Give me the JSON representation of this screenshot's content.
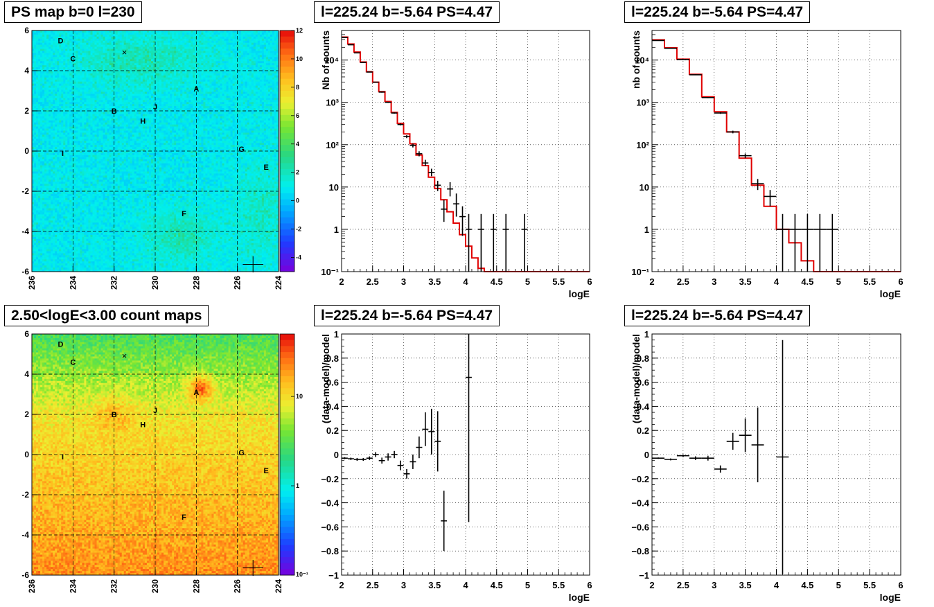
{
  "chart_data": [
    {
      "type": "heatmap",
      "title": "PS map b=0 l=230",
      "xlim": [
        236,
        224
      ],
      "ylim": [
        -6,
        6
      ],
      "x_ticks": [
        "236",
        "234",
        "232",
        "230",
        "228",
        "226",
        "224"
      ],
      "y_ticks": [
        "-6",
        "-4",
        "-2",
        "0",
        "2",
        "4",
        "6"
      ],
      "colorbar": {
        "scale": "linear",
        "range": [
          -5,
          12
        ],
        "ticks": [
          "12",
          "10",
          "8",
          "6",
          "4",
          "2",
          "0",
          "-2",
          "-4"
        ]
      },
      "grid": true,
      "sources": [
        {
          "label": "A",
          "l": 228.0,
          "b": 3.1
        },
        {
          "label": "B",
          "l": 232.0,
          "b": 2.0
        },
        {
          "label": "C",
          "l": 234.0,
          "b": 4.6
        },
        {
          "label": "D",
          "l": 234.6,
          "b": 5.5
        },
        {
          "label": "E",
          "l": 224.6,
          "b": -0.8
        },
        {
          "label": "F",
          "l": 228.6,
          "b": -3.1
        },
        {
          "label": "G",
          "l": 225.8,
          "b": 0.1
        },
        {
          "label": "H",
          "l": 230.6,
          "b": 1.5
        },
        {
          "label": "I",
          "l": 234.5,
          "b": -0.1
        },
        {
          "label": "J",
          "l": 230.0,
          "b": 2.2
        },
        {
          "label": "×",
          "l": 231.5,
          "b": 4.9
        }
      ],
      "position_marker": {
        "l": 225.24,
        "b": -5.64,
        "l_err": 0.5,
        "b_err": 0.4
      }
    },
    {
      "type": "line",
      "title": "l=225.24 b=-5.64 PS=4.47",
      "xlabel": "logE",
      "ylabel": "Nb of counts",
      "xlim": [
        2,
        6
      ],
      "ylim": [
        0.1,
        50000
      ],
      "yscale": "log",
      "x_ticks": [
        "2",
        "2.5",
        "3",
        "3.5",
        "4",
        "4.5",
        "5",
        "5.5",
        "6"
      ],
      "y_ticks": [
        {
          "v": 10000,
          "t": "10⁴"
        },
        {
          "v": 1000,
          "t": "10³"
        },
        {
          "v": 100,
          "t": "10²"
        },
        {
          "v": 10,
          "t": "10"
        },
        {
          "v": 1,
          "t": "1"
        },
        {
          "v": 0.1,
          "t": "10⁻¹"
        }
      ],
      "grid": true,
      "bin_edges": [
        2.0,
        2.1,
        2.2,
        2.3,
        2.4,
        2.5,
        2.6,
        2.7,
        2.8,
        2.9,
        3.0,
        3.1,
        3.2,
        3.3,
        3.4,
        3.5,
        3.6,
        3.7,
        3.8,
        3.9,
        4.0,
        4.1,
        4.2,
        4.3,
        4.4,
        4.5,
        4.6,
        4.7,
        4.8,
        4.9,
        5.0,
        5.1,
        5.2,
        5.3,
        5.4,
        5.5,
        5.6,
        5.7,
        5.8,
        5.9,
        6.0
      ],
      "series": [
        {
          "style": "step",
          "color": "#e00000",
          "values": [
            35000,
            24000,
            15500,
            9000,
            5300,
            3000,
            1800,
            1050,
            580,
            320,
            180,
            105,
            57,
            32,
            17,
            9.2,
            5,
            2.6,
            1.4,
            0.75,
            0.4,
            0.21,
            0.12,
            0.1,
            0.1,
            0.1,
            0.1,
            0.1,
            0.1,
            0.1,
            0.1,
            0.1,
            0.1,
            0.1,
            0.1,
            0.1,
            0.1,
            0.1,
            0.1,
            0.1
          ]
        },
        {
          "style": "points",
          "color": "#000000",
          "x": [
            2.05,
            2.15,
            2.25,
            2.35,
            2.45,
            2.55,
            2.65,
            2.75,
            2.85,
            2.95,
            3.05,
            3.15,
            3.25,
            3.35,
            3.45,
            3.55,
            3.65,
            3.75,
            3.85,
            3.95,
            4.05,
            4.25,
            4.45,
            4.65,
            4.95
          ],
          "y": [
            34000,
            23000,
            14800,
            8800,
            5200,
            3000,
            1750,
            1000,
            560,
            300,
            155,
            96,
            61,
            37,
            22,
            11,
            3,
            9,
            4,
            2,
            1,
            1,
            1,
            1,
            1
          ],
          "xerr": [
            0.05,
            0.05,
            0.05,
            0.05,
            0.05,
            0.05,
            0.05,
            0.05,
            0.05,
            0.05,
            0.05,
            0.05,
            0.05,
            0.05,
            0.05,
            0.05,
            0.05,
            0.05,
            0.05,
            0.05,
            0.05,
            0.05,
            0.05,
            0.05,
            0.05
          ],
          "ylow": [
            33800,
            22800,
            14600,
            8700,
            5100,
            2950,
            1700,
            970,
            540,
            285,
            143,
            86,
            53,
            31,
            18,
            8,
            1.5,
            6,
            2,
            0.7,
            0.1,
            0.1,
            0.1,
            0.1,
            0.1
          ],
          "yhigh": [
            34200,
            23200,
            15000,
            8900,
            5300,
            3050,
            1800,
            1030,
            580,
            317,
            168,
            106,
            70,
            44,
            27,
            14,
            5,
            13,
            7,
            3.5,
            2.3,
            2.3,
            2.3,
            2.3,
            2.3
          ]
        }
      ]
    },
    {
      "type": "line",
      "title": "l=225.24 b=-5.64 PS=4.47",
      "xlabel": "logE",
      "ylabel": "nb of counts",
      "xlim": [
        2,
        6
      ],
      "ylim": [
        0.1,
        50000
      ],
      "yscale": "log",
      "x_ticks": [
        "2",
        "2.5",
        "3",
        "3.5",
        "4",
        "4.5",
        "5",
        "5.5",
        "6"
      ],
      "y_ticks": [
        {
          "v": 10000,
          "t": "10⁴"
        },
        {
          "v": 1000,
          "t": "10³"
        },
        {
          "v": 100,
          "t": "10²"
        },
        {
          "v": 10,
          "t": "10"
        },
        {
          "v": 1,
          "t": "1"
        },
        {
          "v": 0.1,
          "t": "10⁻¹"
        }
      ],
      "grid": true,
      "bin_edges": [
        2.0,
        2.2,
        2.4,
        2.6,
        2.8,
        3.0,
        3.2,
        3.4,
        3.6,
        3.8,
        4.0,
        4.2,
        4.4,
        4.6,
        4.8,
        5.0,
        5.2,
        5.4,
        5.6,
        5.8,
        6.0
      ],
      "series": [
        {
          "style": "step",
          "color": "#e00000",
          "values": [
            30000,
            19500,
            10500,
            4600,
            1350,
            600,
            200,
            48,
            11,
            3.5,
            1,
            0.48,
            0.18,
            0.1,
            0.1,
            0.1,
            0.1,
            0.1,
            0.1,
            0.1
          ]
        },
        {
          "style": "points",
          "color": "#000000",
          "x": [
            2.1,
            2.3,
            2.5,
            2.7,
            2.9,
            3.1,
            3.3,
            3.5,
            3.7,
            3.9,
            4.1,
            4.3,
            4.5,
            4.7,
            4.9
          ],
          "y": [
            29000,
            19000,
            10300,
            4500,
            1300,
            560,
            200,
            55,
            12,
            6,
            1,
            1,
            1,
            1,
            1
          ],
          "xerr": [
            0.1,
            0.1,
            0.1,
            0.1,
            0.1,
            0.1,
            0.1,
            0.1,
            0.1,
            0.1,
            0.1,
            0.1,
            0.1,
            0.1,
            0.1
          ],
          "ylow": [
            28800,
            18800,
            10100,
            4400,
            1260,
            535,
            186,
            48,
            8.5,
            3.5,
            0.1,
            0.1,
            0.1,
            0.1,
            0.1
          ],
          "yhigh": [
            29200,
            19200,
            10500,
            4600,
            1340,
            585,
            214,
            62,
            15.5,
            8.5,
            2.3,
            2.3,
            2.3,
            2.3,
            2.3
          ]
        }
      ]
    },
    {
      "type": "heatmap",
      "title": "2.50<logE<3.00 count maps",
      "xlim": [
        236,
        224
      ],
      "ylim": [
        -6,
        6
      ],
      "x_ticks": [
        "236",
        "234",
        "232",
        "230",
        "228",
        "226",
        "224"
      ],
      "y_ticks": [
        "-6",
        "-4",
        "-2",
        "0",
        "2",
        "4",
        "6"
      ],
      "colorbar": {
        "scale": "log",
        "range": [
          0.1,
          50
        ],
        "ticks": [
          {
            "v": 10,
            "t": "10"
          },
          {
            "v": 1,
            "t": "1"
          },
          {
            "v": 0.1,
            "t": "10⁻¹"
          }
        ]
      },
      "grid": true,
      "sources": [
        {
          "label": "A",
          "l": 228.0,
          "b": 3.1
        },
        {
          "label": "B",
          "l": 232.0,
          "b": 2.0
        },
        {
          "label": "C",
          "l": 234.0,
          "b": 4.6
        },
        {
          "label": "D",
          "l": 234.6,
          "b": 5.5
        },
        {
          "label": "E",
          "l": 224.6,
          "b": -0.8
        },
        {
          "label": "F",
          "l": 228.6,
          "b": -3.1
        },
        {
          "label": "G",
          "l": 225.8,
          "b": 0.1
        },
        {
          "label": "H",
          "l": 230.6,
          "b": 1.5
        },
        {
          "label": "I",
          "l": 234.5,
          "b": -0.1
        },
        {
          "label": "J",
          "l": 230.0,
          "b": 2.2
        },
        {
          "label": "×",
          "l": 231.5,
          "b": 4.9
        }
      ],
      "position_marker": {
        "l": 225.24,
        "b": -5.64,
        "l_err": 0.5,
        "b_err": 0.4
      }
    },
    {
      "type": "scatter",
      "title": "l=225.24 b=-5.64 PS=4.47",
      "xlabel": "logE",
      "ylabel": "(data-model)/model",
      "xlim": [
        2,
        6
      ],
      "ylim": [
        -1,
        1
      ],
      "x_ticks": [
        "2",
        "2.5",
        "3",
        "3.5",
        "4",
        "4.5",
        "5",
        "5.5",
        "6"
      ],
      "y_ticks": [
        {
          "v": 1,
          "t": "1"
        },
        {
          "v": 0.8,
          "t": "0.8"
        },
        {
          "v": 0.6,
          "t": "0.6"
        },
        {
          "v": 0.4,
          "t": "0.4"
        },
        {
          "v": 0.2,
          "t": "0.2"
        },
        {
          "v": 0,
          "t": "0"
        },
        {
          "v": -0.2,
          "t": "−0.2"
        },
        {
          "v": -0.4,
          "t": "−0.4"
        },
        {
          "v": -0.6,
          "t": "−0.6"
        },
        {
          "v": -0.8,
          "t": "−0.8"
        },
        {
          "v": -1,
          "t": "−1"
        }
      ],
      "grid": true,
      "series": [
        {
          "style": "points",
          "color": "#000000",
          "x": [
            2.05,
            2.15,
            2.25,
            2.35,
            2.45,
            2.55,
            2.65,
            2.75,
            2.85,
            2.95,
            3.05,
            3.15,
            3.25,
            3.35,
            3.45,
            3.55,
            3.65,
            4.05
          ],
          "y": [
            -0.03,
            -0.035,
            -0.04,
            -0.04,
            -0.03,
            0.0,
            -0.05,
            -0.02,
            0.0,
            -0.09,
            -0.16,
            -0.06,
            0.06,
            0.21,
            0.19,
            0.11,
            -0.55,
            0.64
          ],
          "xerr": [
            0.05,
            0.05,
            0.05,
            0.05,
            0.05,
            0.05,
            0.05,
            0.05,
            0.05,
            0.05,
            0.05,
            0.05,
            0.05,
            0.05,
            0.05,
            0.05,
            0.05,
            0.05
          ],
          "yerr": [
            0.008,
            0.01,
            0.012,
            0.012,
            0.015,
            0.02,
            0.025,
            0.03,
            0.03,
            0.04,
            0.04,
            0.06,
            0.09,
            0.14,
            0.19,
            0.25,
            0.25,
            1.2
          ]
        }
      ]
    },
    {
      "type": "scatter",
      "title": "l=225.24 b=-5.64 PS=4.47",
      "xlabel": "logE",
      "ylabel": "(data-model)/model",
      "xlim": [
        2,
        6
      ],
      "ylim": [
        -1,
        1
      ],
      "x_ticks": [
        "2",
        "2.5",
        "3",
        "3.5",
        "4",
        "4.5",
        "5",
        "5.5",
        "6"
      ],
      "y_ticks": [
        {
          "v": 1,
          "t": "1"
        },
        {
          "v": 0.8,
          "t": "0.8"
        },
        {
          "v": 0.6,
          "t": "0.6"
        },
        {
          "v": 0.4,
          "t": "0.4"
        },
        {
          "v": 0.2,
          "t": "0.2"
        },
        {
          "v": 0,
          "t": "0"
        },
        {
          "v": -0.2,
          "t": "−0.2"
        },
        {
          "v": -0.4,
          "t": "−0.4"
        },
        {
          "v": -0.6,
          "t": "−0.6"
        },
        {
          "v": -0.8,
          "t": "−0.8"
        },
        {
          "v": -1,
          "t": "−1"
        }
      ],
      "grid": true,
      "series": [
        {
          "style": "points",
          "color": "#000000",
          "x": [
            2.1,
            2.3,
            2.5,
            2.7,
            2.9,
            3.1,
            3.3,
            3.5,
            3.7,
            4.1
          ],
          "y": [
            -0.03,
            -0.04,
            -0.01,
            -0.03,
            -0.03,
            -0.12,
            0.11,
            0.16,
            0.08,
            -0.02
          ],
          "xerr": [
            0.1,
            0.1,
            0.1,
            0.1,
            0.1,
            0.1,
            0.1,
            0.1,
            0.1,
            0.1
          ],
          "yerr": [
            0.006,
            0.008,
            0.01,
            0.015,
            0.02,
            0.03,
            0.07,
            0.14,
            0.31,
            0.97
          ]
        }
      ]
    }
  ]
}
